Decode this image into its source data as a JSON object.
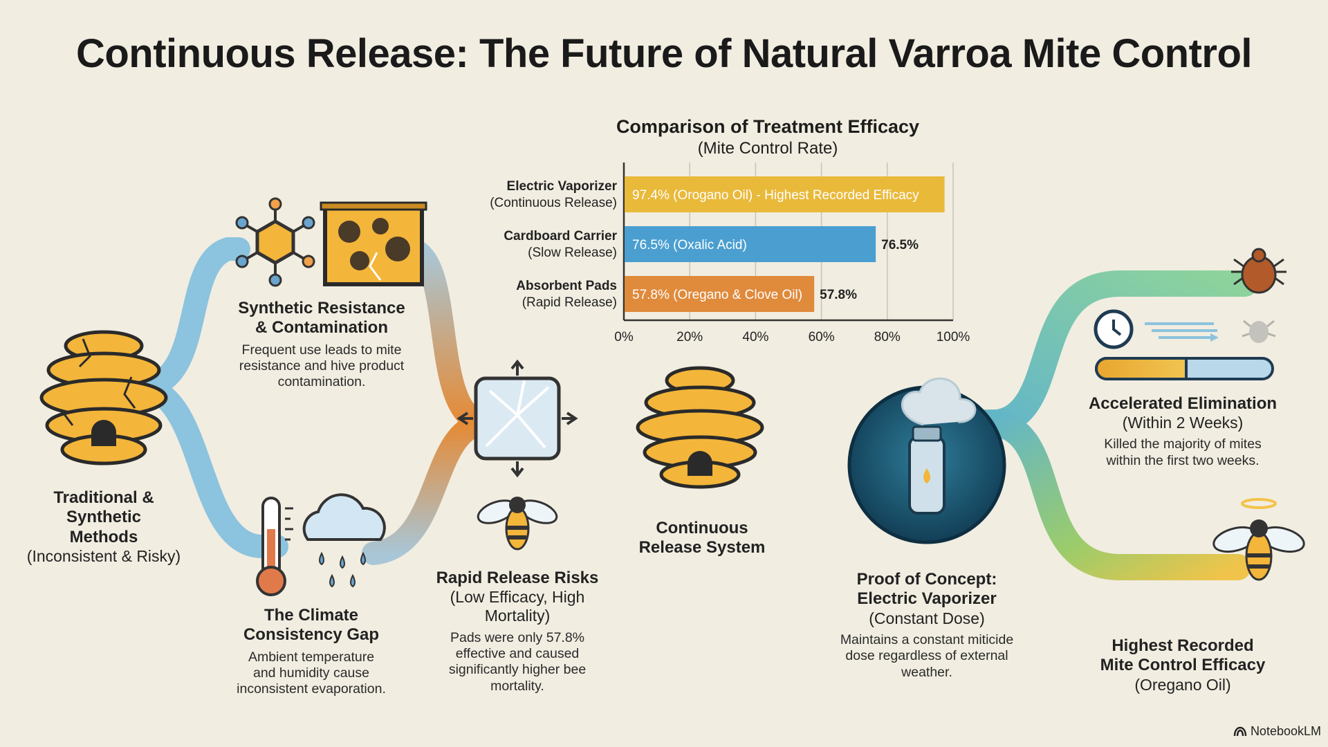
{
  "title": "Continuous Release: The Future of Natural Varroa Mite Control",
  "chart": {
    "title": "Comparison of Treatment Efficacy",
    "subtitle": "(Mite Control Rate)"
  },
  "chart_data": {
    "type": "bar",
    "orientation": "horizontal",
    "title": "Comparison of Treatment Efficacy",
    "subtitle": "(Mite Control Rate)",
    "categories": [
      {
        "line1": "Electric Vaporizer",
        "line2": "(Continuous Release)"
      },
      {
        "line1": "Cardboard Carrier",
        "line2": "(Slow Release)"
      },
      {
        "line1": "Absorbent Pads",
        "line2": "(Rapid Release)"
      }
    ],
    "values": [
      97.4,
      76.5,
      57.8
    ],
    "bar_labels": [
      "97.4% (Orogano Oil) - Highest Recorded Efficacy",
      "76.5% (Oxalic Acid)",
      "57.8% (Oregano & Clove Oil)"
    ],
    "end_labels": [
      "",
      "76.5%",
      "57.8%"
    ],
    "bar_colors": [
      "#e9b93a",
      "#4b9fd0",
      "#e08a3c"
    ],
    "xlim": [
      0,
      100
    ],
    "x_ticks": [
      "0%",
      "20%",
      "40%",
      "60%",
      "80%",
      "100%"
    ],
    "grid": true
  },
  "nodes": {
    "traditional": {
      "h1": "Traditional &",
      "h2": "Synthetic",
      "h3": "Methods",
      "sub": "(Inconsistent & Risky)"
    },
    "synthetic": {
      "h1": "Synthetic Resistance",
      "h2": "& Contamination",
      "d1": "Frequent use leads to mite",
      "d2": "resistance and hive product",
      "d3": "contamination."
    },
    "climate": {
      "h1": "The Climate",
      "h2": "Consistency Gap",
      "d1": "Ambient temperature",
      "d2": "and humidity cause",
      "d3": "inconsistent evaporation."
    },
    "rapid": {
      "h1": "Rapid Release Risks",
      "s1": "(Low Efficacy, High",
      "s2": "Mortality)",
      "d1": "Pads were only 57.8%",
      "d2": "effective and caused",
      "d3": "significantly higher bee",
      "d4": "mortality."
    },
    "continuous": {
      "h1": "Continuous",
      "h2": "Release System"
    },
    "proof": {
      "h1": "Proof of Concept:",
      "h2": "Electric Vaporizer",
      "sub": "(Constant Dose)",
      "d1": "Maintains a constant miticide",
      "d2": "dose regardless of external",
      "d3": "weather."
    },
    "accelerated": {
      "h1": "Accelerated Elimination",
      "sub": "(Within 2 Weeks)",
      "d1": "Killed the majority of mites",
      "d2": "within the first two weeks."
    },
    "highest": {
      "h1": "Highest Recorded",
      "h2": "Mite Control Efficacy",
      "sub": "(Oregano Oil)"
    }
  },
  "brand": "NotebookLM",
  "icons": [
    "beehive-icon",
    "molecule-icon",
    "honeycomb-frame-icon",
    "thermometer-icon",
    "rain-cloud-icon",
    "shattered-pad-icon",
    "bee-icon",
    "vaporizer-icon",
    "mite-icon",
    "clock-icon",
    "progress-bar-icon",
    "haloed-bee-icon"
  ]
}
